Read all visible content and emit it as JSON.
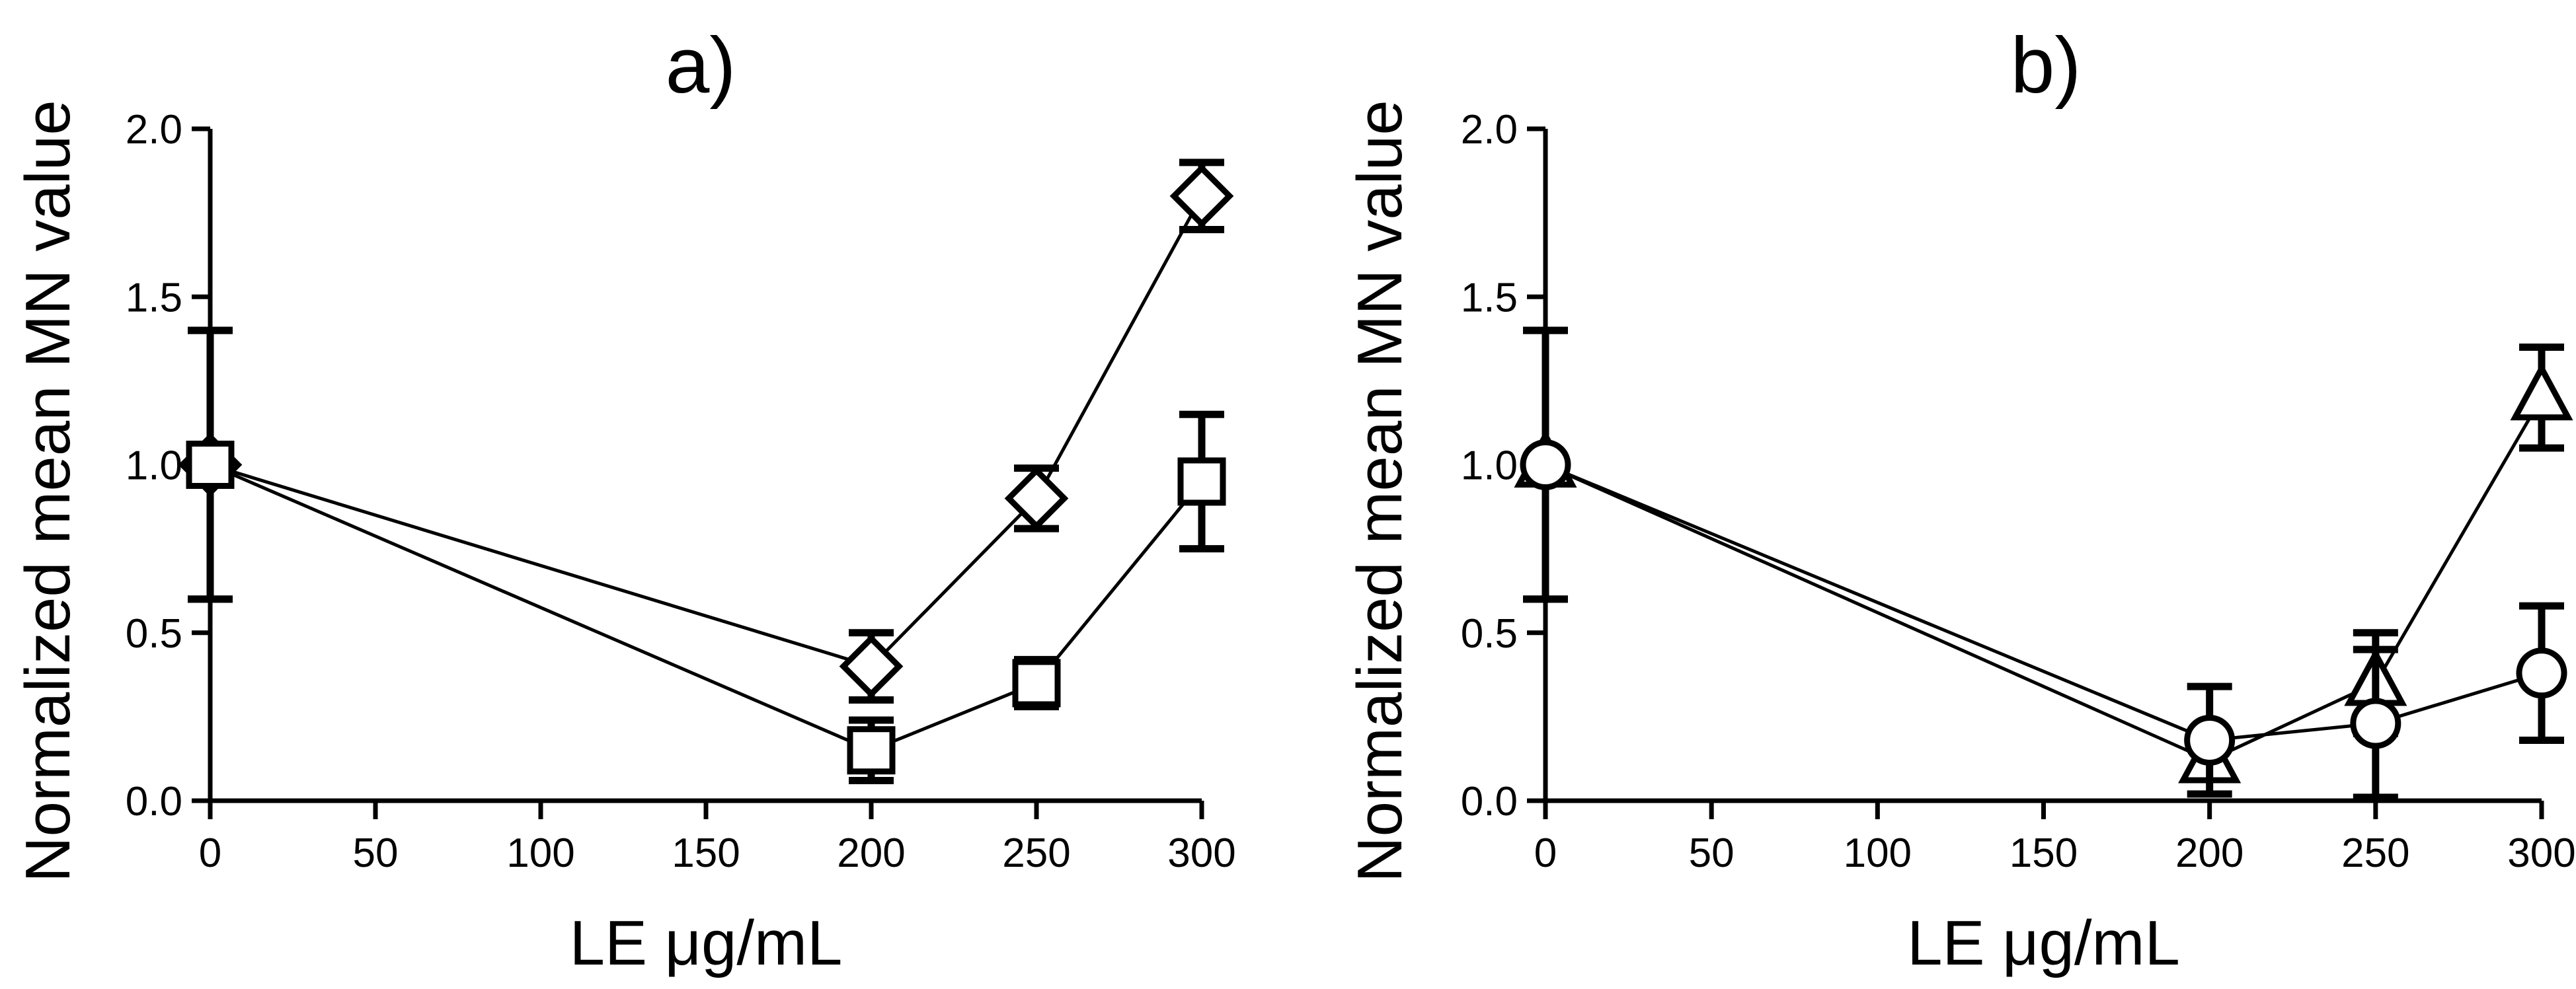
{
  "chart_data": [
    {
      "type": "line",
      "title": "a)",
      "xlabel": "LE μg/mL",
      "ylabel": "Normalized mean MN value",
      "xlim": [
        0,
        300
      ],
      "ylim": [
        0,
        2.0
      ],
      "xticks": [
        "0",
        "50",
        "100",
        "150",
        "200",
        "250",
        "300"
      ],
      "yticks": [
        "0.0",
        "0.5",
        "1.0",
        "1.5",
        "2.0"
      ],
      "grid": false,
      "x": [
        0,
        200,
        250,
        300
      ],
      "series": [
        {
          "marker": "diamond",
          "values": [
            1.0,
            0.4,
            0.9,
            1.8
          ],
          "errors": [
            0.4,
            0.1,
            0.09,
            0.1
          ]
        },
        {
          "marker": "square",
          "values": [
            1.0,
            0.15,
            0.35,
            0.95
          ],
          "errors": [
            0.4,
            0.09,
            0.07,
            0.2
          ]
        }
      ]
    },
    {
      "type": "line",
      "title": "b)",
      "xlabel": "LE μg/mL",
      "ylabel": "Normalized mean MN value",
      "xlim": [
        0,
        300
      ],
      "ylim": [
        0,
        2.0
      ],
      "xticks": [
        "0",
        "50",
        "100",
        "150",
        "200",
        "250",
        "300"
      ],
      "yticks": [
        "0.0",
        "0.5",
        "1.0",
        "1.5",
        "2.0"
      ],
      "grid": false,
      "x": [
        0,
        200,
        250,
        300
      ],
      "series": [
        {
          "marker": "triangle",
          "values": [
            1.0,
            0.12,
            0.35,
            1.2
          ],
          "errors": [
            0.4,
            0.05,
            0.15,
            0.15
          ]
        },
        {
          "marker": "circle",
          "values": [
            1.0,
            0.18,
            0.23,
            0.38
          ],
          "errors": [
            0.4,
            0.16,
            0.22,
            0.2
          ]
        }
      ]
    }
  ]
}
